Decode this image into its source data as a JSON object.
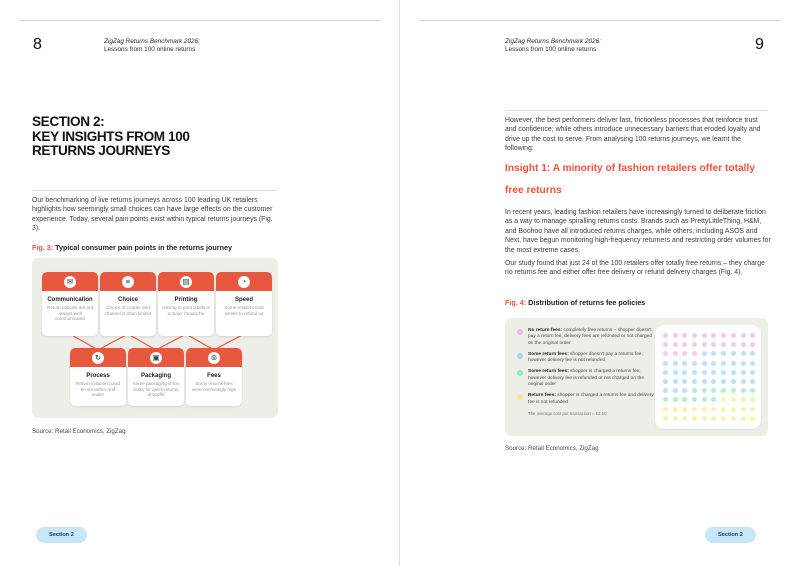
{
  "accent": "#E9543B",
  "panel_bg": "#EDEEE8",
  "badge_bg": "#C7E7F8",
  "pages": {
    "left": {
      "header": {
        "page_number": "8",
        "title": "ZigZag Returns Benchmark 2026:",
        "subtitle": "Lessons from 100 online returns"
      },
      "section_heading": {
        "line1": "SECTION 2:",
        "line2": "KEY INSIGHTS FROM 100",
        "line3": "RETURNS JOURNEYS"
      },
      "intro": "Our benchmarking of live returns journeys across 100 leading UK retailers highlights how seemingly small choices can have large effects on the customer experience. Today, several pain points exist within typical returns journeys (Fig. 3).",
      "fig3": {
        "label": "Fig. 3:",
        "title": "Typical consumer pain points in the returns journey",
        "top_cards": [
          {
            "title": "Communication",
            "desc": "Return policies are not always well communicated",
            "icon_name": "chat-icon",
            "icon_glyph": "✉"
          },
          {
            "title": "Choice",
            "desc": "Choice of courier and channel is often limited",
            "icon_name": "options-icon",
            "icon_glyph": "≡"
          },
          {
            "title": "Printing",
            "desc": "Having to print labels is a major headache",
            "icon_name": "printer-icon",
            "icon_glyph": "▤"
          },
          {
            "title": "Speed",
            "desc": "Some retailers took weeks to refund us",
            "icon_name": "stopwatch-icon",
            "icon_glyph": "◔"
          }
        ],
        "bottom_cards": [
          {
            "title": "Process",
            "desc": "Return initiation could be smoother and easier",
            "icon_name": "refresh-icon",
            "icon_glyph": "↻"
          },
          {
            "title": "Packaging",
            "desc": "Some packaging is too bulky for quick returns dropoffs",
            "icon_name": "package-icon",
            "icon_glyph": "▣"
          },
          {
            "title": "Fees",
            "desc": "Some returns fees were confusingly high",
            "icon_name": "coins-icon",
            "icon_glyph": "⊚"
          }
        ]
      },
      "source": "Source: Retail Economics, ZigZag",
      "badge": "Section 2"
    },
    "right": {
      "header": {
        "page_number": "9",
        "title": "ZigZag Returns Benchmark 2026:",
        "subtitle": "Lessons from 100 online returns"
      },
      "para1": "However, the best performers deliver fast, frictionless processes that reinforce trust and confidence; while others introduce unnecessary barriers that eroded loyalty and drive up the cost to serve. From analysing 100 returns journeys, we learnt the following:",
      "insight_heading": {
        "line1": "Insight 1: A minority of fashion retailers offer totally",
        "line2": "free returns"
      },
      "para2": "In recent years, leading fashion retailers have increasingly turned to deliberate friction as a way to manage spiralling returns costs. Brands such as PrettyLittleThing, H&M, and Boohoo have all introduced returns charges, while others, including ASOS and Next, have begun monitoring high-frequency returners and restricting order volumes for the most extreme cases.",
      "para3": "Our study found that just 24 of the 100 retailers offer totally free returns – they charge no returns fee and either offer free delivery or refund delivery charges (Fig. 4).",
      "fig4": {
        "label": "Fig. 4:",
        "title": "Distribution of returns fee policies",
        "legend": [
          {
            "dot_color": "#F2B5E6",
            "bold": "No return fees:",
            "text": "completely free returns – shopper doesn't pay a return fee, delivery fees are refunded or not charged on the original order"
          },
          {
            "dot_color": "#A3D6F4",
            "bold": "Some return fees:",
            "text": "shopper doesn't pay a returns fee, however delivery fee is not refunded"
          },
          {
            "dot_color": "#93ECBB",
            "bold": "Some return fees:",
            "text": "shopper is charged a returns fee, however delivery fee is refunded or not charged on the original order"
          },
          {
            "dot_color": "#F3E88A",
            "bold": "Return fees:",
            "text": "shopper is charged a returns fee and delivery fee is not refunded"
          }
        ],
        "footnote": "The average cost per transaction = £3.50"
      },
      "source": "Source: Retail Economics, ZigZag",
      "badge": "Section 2"
    }
  },
  "chart_data": {
    "type": "heatmap",
    "subtype": "dot-matrix-waffle",
    "title": "Fig. 4: Distribution of returns fee policies",
    "categories": [
      "No return fees",
      "Some return fees – no returns fee, delivery not refunded",
      "Some return fees – returns fee charged, delivery refunded",
      "Return fees – returns fee charged, delivery not refunded"
    ],
    "values": [
      24,
      40,
      12,
      24
    ],
    "color_map": {
      "P": "#F6C8EE",
      "B": "#BCE0F7",
      "G": "#B0F1CA",
      "Y": "#F8F3AE"
    },
    "grid": [
      "PPPPPPPPPP",
      "PPPPPPPPPP",
      "PPPPBBBBBB",
      "BBBBBBBBBB",
      "BBBBBBBBBB",
      "BBBBBBBBBB",
      "BBBBGGGGGG",
      "GGGGGGYYYY",
      "YYYYYYYYYY",
      "YYYYYYYYYY"
    ],
    "legend_position": "left",
    "grid_size": "10x10"
  }
}
